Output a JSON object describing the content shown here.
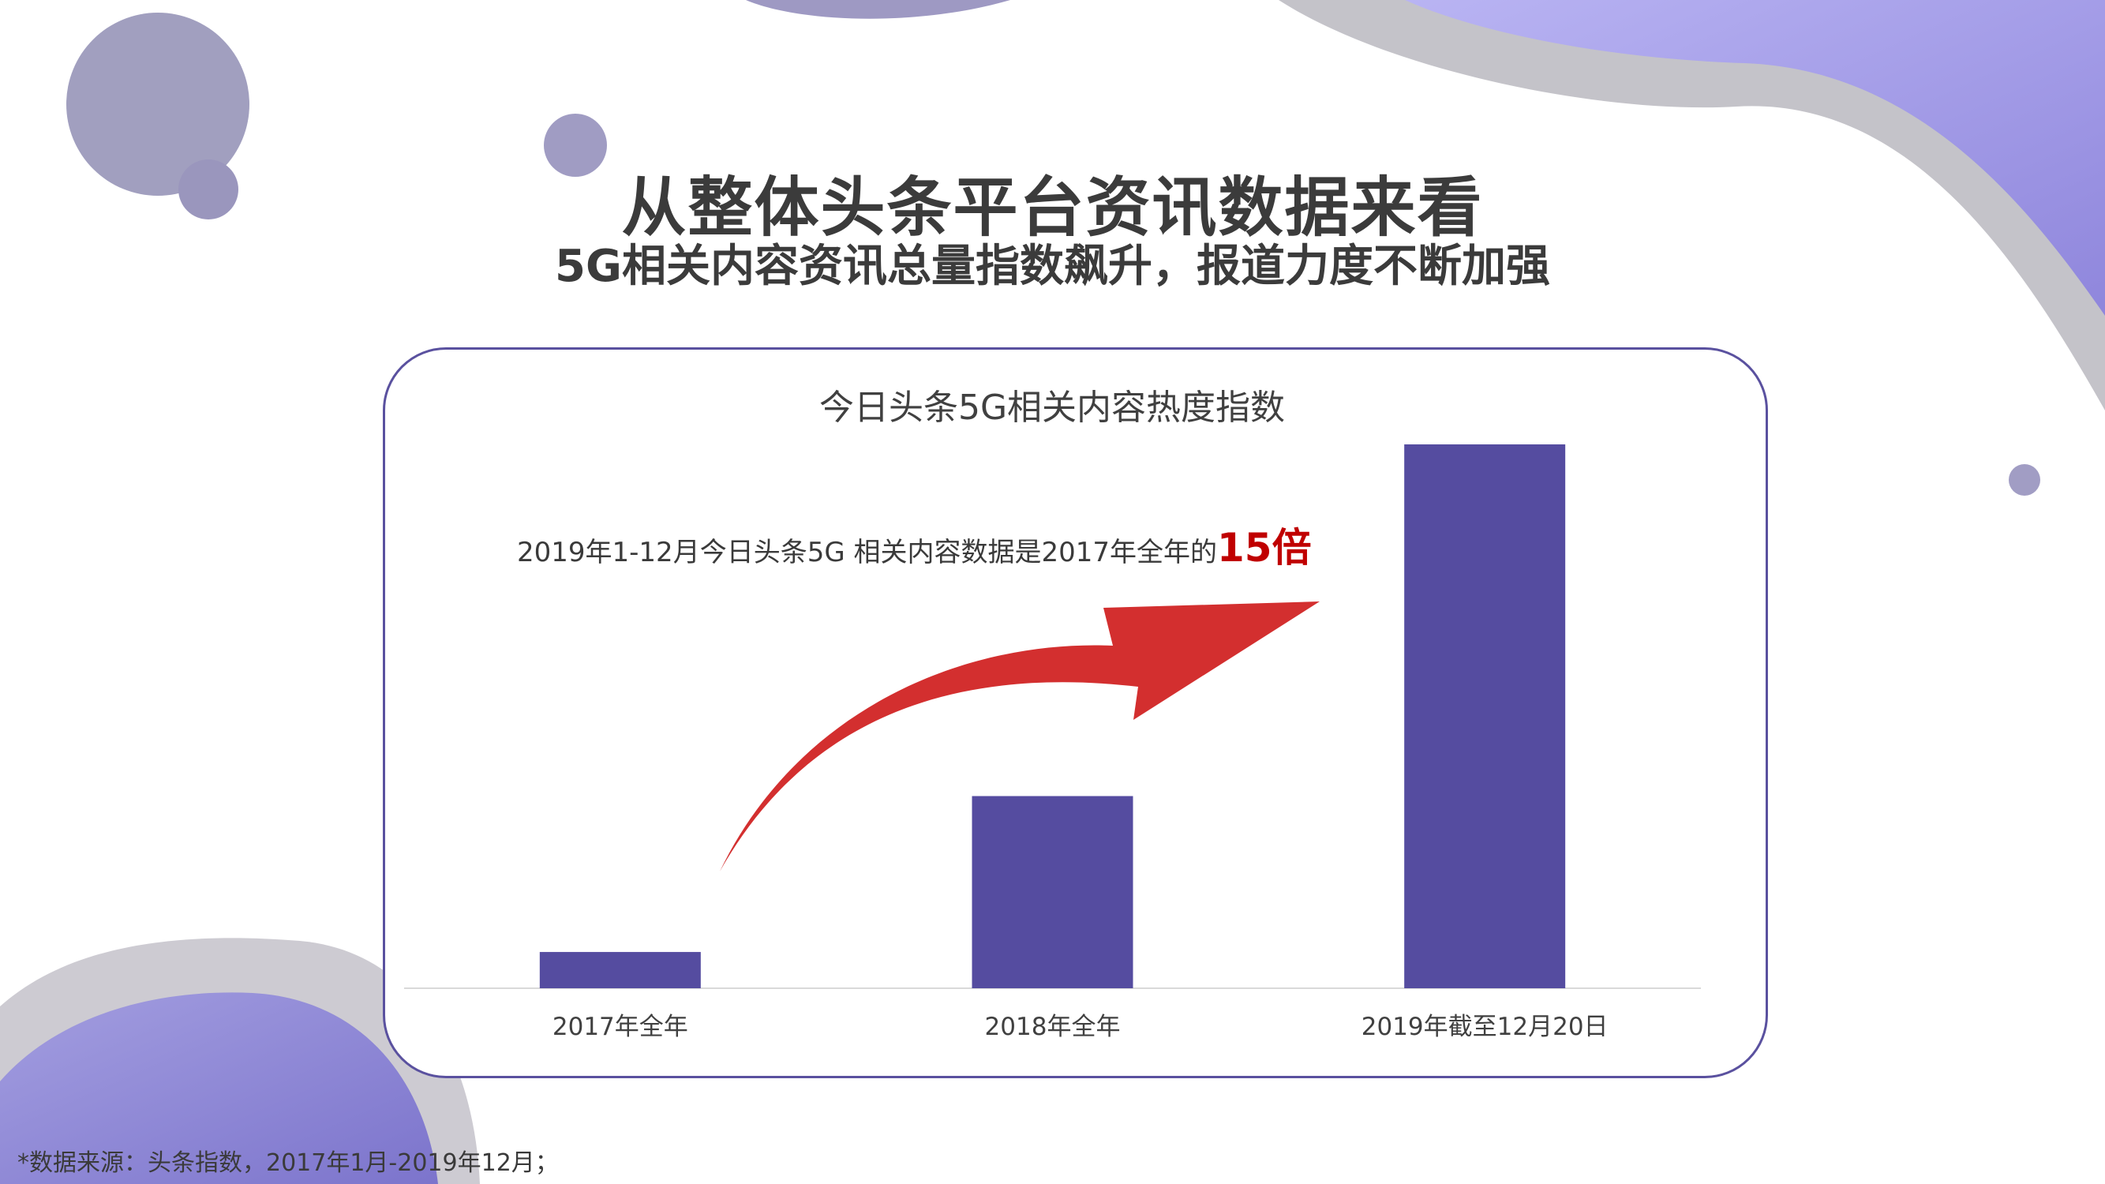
{
  "header": {
    "title": "从整体头条平台资讯数据来看",
    "subtitle": "5G相关内容资讯总量指数飙升，报道力度不断加强"
  },
  "chart_data": {
    "type": "bar",
    "title": "今日头条5G相关内容热度指数",
    "categories": [
      "2017年全年",
      "2018年全年",
      "2019年截至12月20日"
    ],
    "values": [
      1,
      5.3,
      15
    ],
    "ylim": [
      0,
      15.5
    ],
    "grid": false,
    "legend": "none",
    "bar_color": "#554ca0",
    "annotation": {
      "text": "2019年1-12月今日头条5G 相关内容数据是2017年全年的",
      "highlight": "15倍",
      "highlight_color": "#c00000",
      "arrow_color": "#d32f2f"
    }
  },
  "footnote": "*数据来源：头条指数，2017年1月-2019年12月；",
  "colors": {
    "accent": "#554ca0",
    "card_border": "#5a519f",
    "deco_purple": "#a9a4ee",
    "deco_gray": "#c4c3c9"
  }
}
